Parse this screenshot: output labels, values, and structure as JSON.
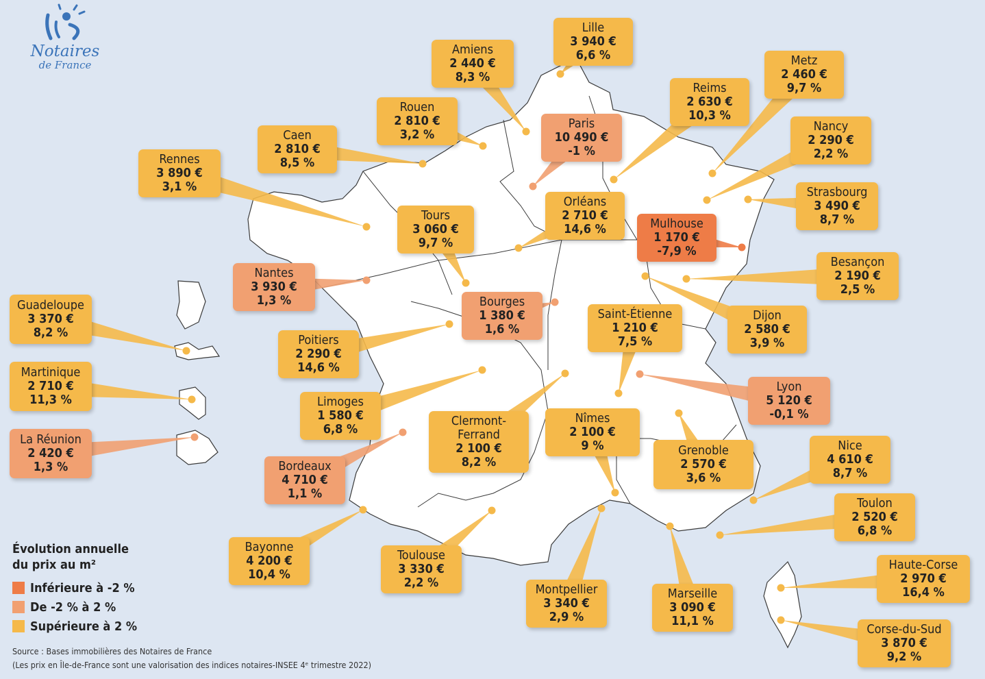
{
  "brand": {
    "line1": "Notaires",
    "line2": "de France"
  },
  "colors": {
    "high": "#f5b94a",
    "mid": "#f1a071",
    "low": "#ee7c47",
    "land": "#ffffff",
    "sea": "#dde6f2",
    "logo": "#3b74b9"
  },
  "legend": {
    "title_line1": "Évolution annuelle",
    "title_line2": "du prix au m²",
    "items": [
      {
        "label": "Inférieure à -2 %",
        "color": "#ee7c47"
      },
      {
        "label": "De -2 % à 2 %",
        "color": "#f1a071"
      },
      {
        "label": "Supérieure à 2 %",
        "color": "#f5b94a"
      }
    ]
  },
  "source": {
    "line1": "Source : Bases immobilières des Notaires de France",
    "line2": "(Les prix en Île-de-France sont une valorisation des indices notaires-INSEE 4ᵉ trimestre 2022)"
  },
  "cities": [
    {
      "name": "Lille",
      "price": "3 940 €",
      "evolution": "6,6 %",
      "category": "high"
    },
    {
      "name": "Amiens",
      "price": "2 440 €",
      "evolution": "8,3 %",
      "category": "high"
    },
    {
      "name": "Rouen",
      "price": "2 810 €",
      "evolution": "3,2 %",
      "category": "high"
    },
    {
      "name": "Caen",
      "price": "2 810 €",
      "evolution": "8,5 %",
      "category": "high"
    },
    {
      "name": "Rennes",
      "price": "3 890 €",
      "evolution": "3,1 %",
      "category": "high"
    },
    {
      "name": "Paris",
      "price": "10 490 €",
      "evolution": "-1 %",
      "category": "mid"
    },
    {
      "name": "Reims",
      "price": "2 630 €",
      "evolution": "10,3 %",
      "category": "high"
    },
    {
      "name": "Metz",
      "price": "2 460 €",
      "evolution": "9,7 %",
      "category": "high"
    },
    {
      "name": "Nancy",
      "price": "2 290 €",
      "evolution": "2,2 %",
      "category": "high"
    },
    {
      "name": "Strasbourg",
      "price": "3 490 €",
      "evolution": "8,7 %",
      "category": "high"
    },
    {
      "name": "Orléans",
      "price": "2 710 €",
      "evolution": "14,6 %",
      "category": "high"
    },
    {
      "name": "Tours",
      "price": "3 060 €",
      "evolution": "9,7 %",
      "category": "high"
    },
    {
      "name": "Mulhouse",
      "price": "1 170 €",
      "evolution": "-7,9 %",
      "category": "low"
    },
    {
      "name": "Besançon",
      "price": "2 190 €",
      "evolution": "2,5 %",
      "category": "high"
    },
    {
      "name": "Nantes",
      "price": "3 930 €",
      "evolution": "1,3 %",
      "category": "mid"
    },
    {
      "name": "Bourges",
      "price": "1 380 €",
      "evolution": "1,6 %",
      "category": "mid"
    },
    {
      "name": "Dijon",
      "price": "2 580 €",
      "evolution": "3,9 %",
      "category": "high"
    },
    {
      "name": "Saint-Étienne",
      "price": "1 210 €",
      "evolution": "7,5 %",
      "category": "high"
    },
    {
      "name": "Poitiers",
      "price": "2 290 €",
      "evolution": "14,6 %",
      "category": "high"
    },
    {
      "name": "Lyon",
      "price": "5 120 €",
      "evolution": "-0,1 %",
      "category": "mid"
    },
    {
      "name": "Limoges",
      "price": "1 580 €",
      "evolution": "6,8 %",
      "category": "high"
    },
    {
      "name": "Clermont-Ferrand",
      "name_line1": "Clermont-",
      "name_line2": "Ferrand",
      "price": "2 100 €",
      "evolution": "8,2 %",
      "category": "high"
    },
    {
      "name": "Nîmes",
      "price": "2 100 €",
      "evolution": "9 %",
      "category": "high"
    },
    {
      "name": "Grenoble",
      "price": "2 570 €",
      "evolution": "3,6 %",
      "category": "high"
    },
    {
      "name": "Nice",
      "price": "4 610 €",
      "evolution": "8,7 %",
      "category": "high"
    },
    {
      "name": "Bordeaux",
      "price": "4 710 €",
      "evolution": "1,1 %",
      "category": "mid"
    },
    {
      "name": "Toulon",
      "price": "2 520 €",
      "evolution": "6,8 %",
      "category": "high"
    },
    {
      "name": "Bayonne",
      "price": "4 200 €",
      "evolution": "10,4 %",
      "category": "high"
    },
    {
      "name": "Toulouse",
      "price": "3 330 €",
      "evolution": "2,2 %",
      "category": "high"
    },
    {
      "name": "Montpellier",
      "price": "3 340 €",
      "evolution": "2,9 %",
      "category": "high"
    },
    {
      "name": "Marseille",
      "price": "3 090 €",
      "evolution": "11,1 %",
      "category": "high"
    },
    {
      "name": "Haute-Corse",
      "price": "2 970 €",
      "evolution": "16,4 %",
      "category": "high"
    },
    {
      "name": "Corse-du-Sud",
      "price": "3 870 €",
      "evolution": "9,2 %",
      "category": "high"
    },
    {
      "name": "Guadeloupe",
      "price": "3 370 €",
      "evolution": "8,2 %",
      "category": "high"
    },
    {
      "name": "Martinique",
      "price": "2 710 €",
      "evolution": "11,3 %",
      "category": "high"
    },
    {
      "name": "La Réunion",
      "price": "2 420 €",
      "evolution": "1,3 %",
      "category": "mid"
    }
  ]
}
